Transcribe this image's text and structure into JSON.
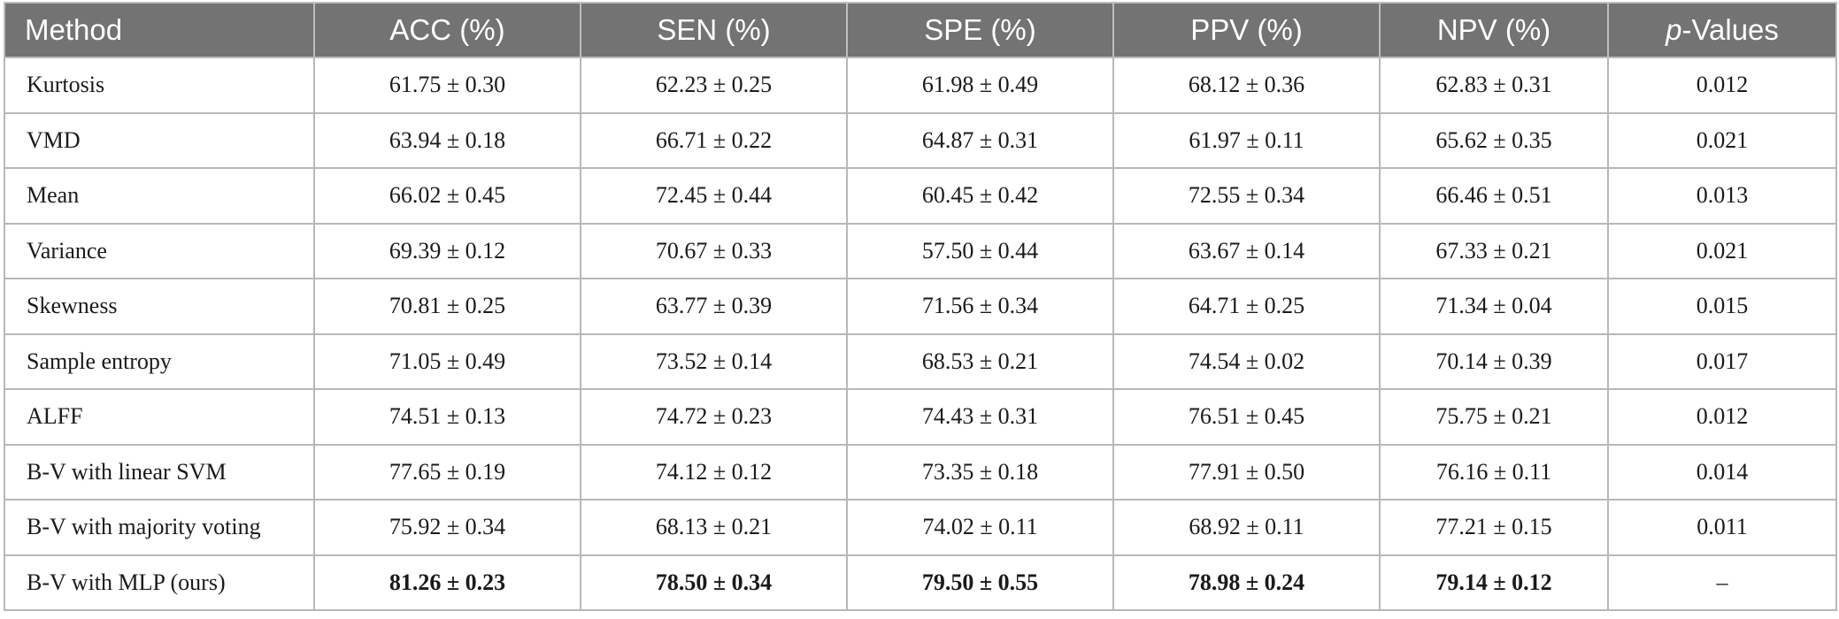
{
  "header": {
    "method": "Method",
    "acc": "ACC (%)",
    "sen": "SEN (%)",
    "spe": "SPE (%)",
    "ppv": "PPV (%)",
    "npv": "NPV (%)",
    "p_italic": "p",
    "p_rest": "-Values"
  },
  "rows": [
    {
      "method": "Kurtosis",
      "acc": "61.75 ± 0.30",
      "sen": "62.23 ± 0.25",
      "spe": "61.98 ± 0.49",
      "ppv": "68.12 ± 0.36",
      "npv": "62.83 ± 0.31",
      "p": "0.012"
    },
    {
      "method": "VMD",
      "acc": "63.94 ± 0.18",
      "sen": "66.71 ± 0.22",
      "spe": "64.87 ± 0.31",
      "ppv": "61.97 ± 0.11",
      "npv": "65.62 ± 0.35",
      "p": "0.021"
    },
    {
      "method": "Mean",
      "acc": "66.02 ± 0.45",
      "sen": "72.45 ± 0.44",
      "spe": "60.45 ± 0.42",
      "ppv": "72.55 ± 0.34",
      "npv": "66.46 ± 0.51",
      "p": "0.013"
    },
    {
      "method": "Variance",
      "acc": "69.39 ± 0.12",
      "sen": "70.67 ± 0.33",
      "spe": "57.50 ± 0.44",
      "ppv": "63.67 ± 0.14",
      "npv": "67.33 ± 0.21",
      "p": "0.021"
    },
    {
      "method": "Skewness",
      "acc": "70.81 ± 0.25",
      "sen": "63.77 ± 0.39",
      "spe": "71.56 ± 0.34",
      "ppv": "64.71 ± 0.25",
      "npv": "71.34 ± 0.04",
      "p": "0.015"
    },
    {
      "method": "Sample entropy",
      "acc": "71.05 ± 0.49",
      "sen": "73.52 ± 0.14",
      "spe": "68.53 ± 0.21",
      "ppv": "74.54 ± 0.02",
      "npv": "70.14 ± 0.39",
      "p": "0.017"
    },
    {
      "method": "ALFF",
      "acc": "74.51 ± 0.13",
      "sen": "74.72 ± 0.23",
      "spe": "74.43 ± 0.31",
      "ppv": "76.51 ± 0.45",
      "npv": "75.75 ± 0.21",
      "p": "0.012"
    },
    {
      "method": "B-V with linear SVM",
      "acc": "77.65 ± 0.19",
      "sen": "74.12 ± 0.12",
      "spe": "73.35 ± 0.18",
      "ppv": "77.91 ± 0.50",
      "npv": "76.16 ± 0.11",
      "p": "0.014"
    },
    {
      "method": "B-V with majority voting",
      "acc": "75.92 ± 0.34",
      "sen": "68.13 ± 0.21",
      "spe": "74.02 ± 0.11",
      "ppv": "68.92 ± 0.11",
      "npv": "77.21 ± 0.15",
      "p": "0.011"
    },
    {
      "method": "B-V with MLP (ours)",
      "acc": "81.26 ± 0.23",
      "sen": "78.50 ± 0.34",
      "spe": "79.50 ± 0.55",
      "ppv": "78.98 ± 0.24",
      "npv": "79.14 ± 0.12",
      "p": "–"
    }
  ]
}
